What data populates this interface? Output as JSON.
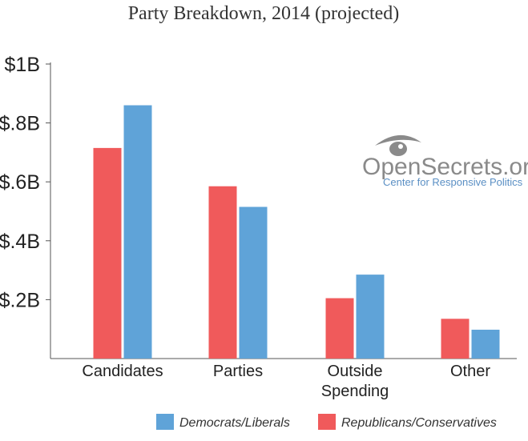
{
  "chart_data": {
    "type": "bar",
    "title": "Party Breakdown, 2014 (projected)",
    "xlabel": "",
    "ylabel": "",
    "ylim": [
      0,
      1.0
    ],
    "grid": false,
    "y_ticks": [
      {
        "value": 1.0,
        "label": "$1B"
      },
      {
        "value": 0.8,
        "label": "$.8B"
      },
      {
        "value": 0.6,
        "label": "$.6B"
      },
      {
        "value": 0.4,
        "label": "$.4B"
      },
      {
        "value": 0.2,
        "label": "$.2B"
      }
    ],
    "categories": [
      {
        "key": "candidates",
        "lines": [
          "Candidates"
        ]
      },
      {
        "key": "parties",
        "lines": [
          "Parties"
        ]
      },
      {
        "key": "outside-spending",
        "lines": [
          "Outside",
          "Spending"
        ]
      },
      {
        "key": "other",
        "lines": [
          "Other"
        ]
      }
    ],
    "series": [
      {
        "key": "republicans",
        "name": "Republicans/Conservatives",
        "color": "#f05a5b",
        "values": [
          0.715,
          0.585,
          0.205,
          0.135
        ]
      },
      {
        "key": "democrats",
        "name": "Democrats/Liberals",
        "color": "#5fa3d8",
        "values": [
          0.86,
          0.515,
          0.285,
          0.098
        ]
      }
    ],
    "legend": {
      "placement": "bottom",
      "order": [
        "democrats",
        "republicans"
      ]
    }
  },
  "branding": {
    "logo_text": "OpenSecrets.org",
    "logo_tagline": "Center for Responsive Politics",
    "logo_icon": "eye-icon"
  },
  "colors": {
    "axis": "#555555",
    "text": "#222222",
    "logo_gray": "#8a8a8a",
    "logo_blue": "#5a8fc4"
  }
}
